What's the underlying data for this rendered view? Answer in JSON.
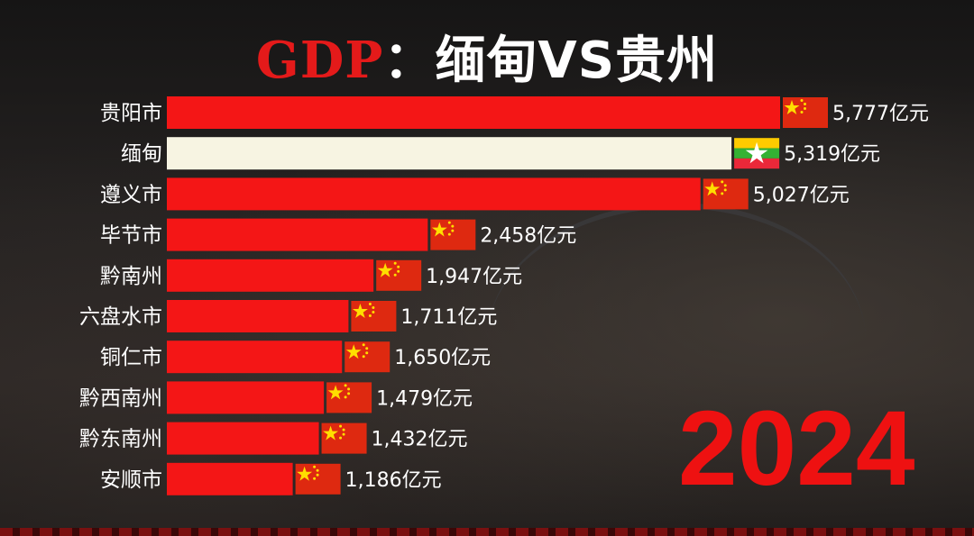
{
  "title": {
    "main": "GDP",
    "separator": "：",
    "rest": "缅甸VS贵州"
  },
  "year": "2024",
  "colors": {
    "china_bar": "#f41616",
    "myanmar_bar": "#f7f4e2",
    "title_red": "#e41a1a"
  },
  "chart_data": {
    "type": "bar",
    "orientation": "horizontal",
    "categories": [
      "贵阳市",
      "缅甸",
      "遵义市",
      "毕节市",
      "黔南州",
      "六盘水市",
      "铜仁市",
      "黔西南州",
      "黔东南州",
      "安顺市"
    ],
    "values": [
      5777,
      5319,
      5027,
      2458,
      1947,
      1711,
      1650,
      1479,
      1432,
      1186
    ],
    "value_labels": [
      "5,777亿元",
      "5,319亿元",
      "5,027亿元",
      "2,458亿元",
      "1,947亿元",
      "1,711亿元",
      "1,650亿元",
      "1,479亿元",
      "1,432亿元",
      "1,186亿元"
    ],
    "flags": [
      "china",
      "myanmar",
      "china",
      "china",
      "china",
      "china",
      "china",
      "china",
      "china",
      "china"
    ],
    "unit": "亿元",
    "xlim": [
      0,
      5777
    ],
    "grid": false,
    "legend": "none"
  }
}
